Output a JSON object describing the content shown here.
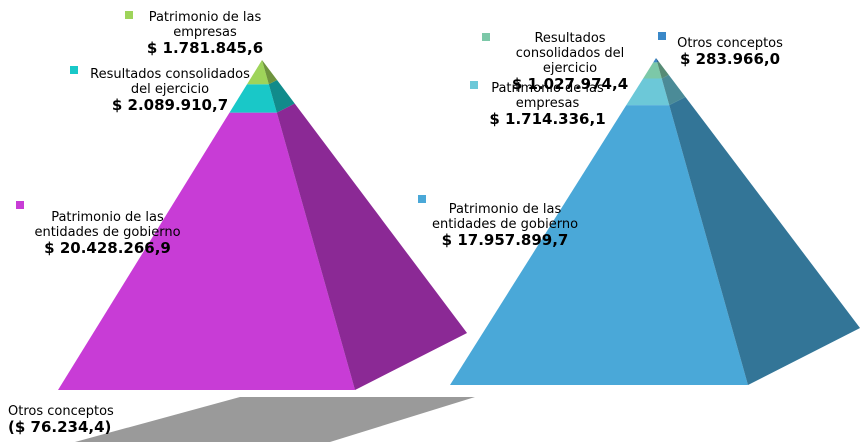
{
  "chart_data": [
    {
      "type": "pyramid",
      "categories": [
        "Patrimonio de las entidades de gobierno",
        "Resultados consolidados del ejercicio",
        "Patrimonio de las empresas",
        "Otros conceptos"
      ],
      "values": [
        20428266.9,
        2089910.7,
        1781845.6,
        -76234.4
      ],
      "value_labels": [
        "$ 20.428.266,9",
        "$ 2.089.910,7",
        "$ 1.781.845,6",
        "($ 76.234,4)"
      ],
      "colors": [
        "#c83cd6",
        "#19c8c8",
        "#9ed45a",
        "#9a9a9a"
      ]
    },
    {
      "type": "pyramid",
      "categories": [
        "Patrimonio de las entidades de gobierno",
        "Patrimonio de las empresas",
        "Resultados consolidados del ejercicio",
        "Otros conceptos"
      ],
      "values": [
        17957899.7,
        1714336.1,
        1027974.4,
        283966.0
      ],
      "value_labels": [
        "$ 17.957.899,7",
        "$ 1.714.336,1",
        "$ 1.027.974,4",
        "$ 283.966,0"
      ],
      "colors": [
        "#4aa8d8",
        "#6cc8d8",
        "#7cc8a8",
        "#3a88c8"
      ]
    }
  ]
}
